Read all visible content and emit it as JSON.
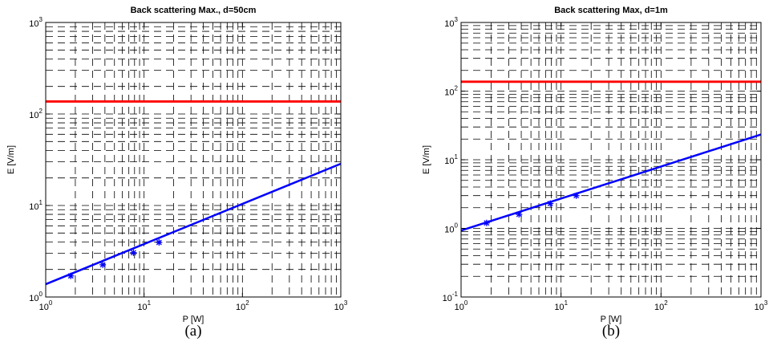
{
  "chart_data": [
    {
      "type": "line",
      "title": "Back scattering Max., d=50cm",
      "xlabel": "P [W]",
      "ylabel": "E [V/m]",
      "xscale": "log",
      "yscale": "log",
      "xlim": [
        1,
        1000
      ],
      "ylim": [
        1,
        1000
      ],
      "x_ticks": [
        1,
        10,
        100,
        1000
      ],
      "y_ticks": [
        1,
        10,
        100,
        1000
      ],
      "grid": true,
      "caption": "(a)",
      "series": [
        {
          "style": "line",
          "color": "#0000ff",
          "x": [
            1,
            1000
          ],
          "y": [
            1.38,
            28.6
          ]
        },
        {
          "style": "markers",
          "marker": "asterisk",
          "color": "#0000ff",
          "x": [
            1.8,
            3.8,
            7.8,
            14.2
          ],
          "y": [
            1.7,
            2.25,
            3.05,
            3.95
          ]
        },
        {
          "style": "hline",
          "color": "#ff0000",
          "y": [
            137
          ]
        }
      ]
    },
    {
      "type": "line",
      "title": "Back scattering Max, d=1m",
      "xlabel": "P [W]",
      "ylabel": "E [V/m]",
      "xscale": "log",
      "yscale": "log",
      "xlim": [
        1,
        1000
      ],
      "ylim": [
        0.1,
        1000
      ],
      "x_ticks": [
        1,
        10,
        100,
        1000
      ],
      "y_ticks": [
        0.1,
        1,
        10,
        100,
        1000
      ],
      "grid": true,
      "caption": "(b)",
      "series": [
        {
          "style": "line",
          "color": "#0000ff",
          "x": [
            1,
            1000
          ],
          "y": [
            0.93,
            23.3
          ]
        },
        {
          "style": "markers",
          "marker": "asterisk",
          "color": "#0000ff",
          "x": [
            1.8,
            3.8,
            7.8,
            14.2
          ],
          "y": [
            1.2,
            1.6,
            2.3,
            3.0
          ]
        },
        {
          "style": "hline",
          "color": "#ff0000",
          "y": [
            137
          ]
        }
      ]
    }
  ]
}
